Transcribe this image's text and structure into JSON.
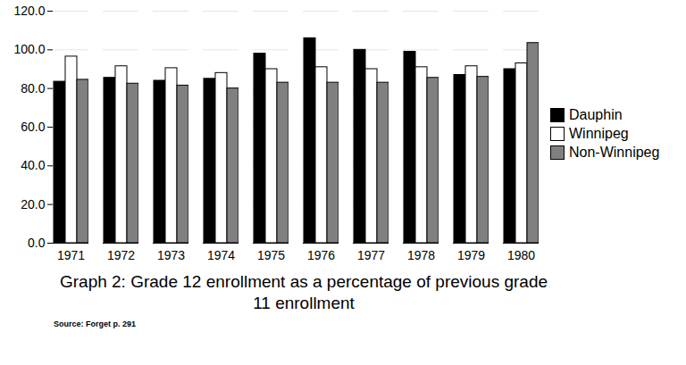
{
  "chart_data": {
    "type": "bar",
    "title": "Graph 2: Grade 12 enrollment as a percentage of previous grade 11 enrollment",
    "source": "Source: Forget p. 291",
    "categories": [
      "1971",
      "1972",
      "1973",
      "1974",
      "1975",
      "1976",
      "1977",
      "1978",
      "1979",
      "1980"
    ],
    "series": [
      {
        "name": "Dauphin",
        "color": "#000000",
        "values": [
          83.5,
          85.5,
          84,
          85,
          98,
          106,
          100,
          99,
          87,
          90
        ]
      },
      {
        "name": "Winnipeg",
        "color": "#ffffff",
        "values": [
          96.5,
          91.5,
          90.5,
          88,
          90,
          91,
          90,
          91,
          91.5,
          93
        ]
      },
      {
        "name": "Non-Winnipeg",
        "color": "#808080",
        "values": [
          84.5,
          82.5,
          81.5,
          80,
          83,
          83,
          83,
          85.5,
          86,
          103.5
        ]
      }
    ],
    "ylim": [
      0,
      120
    ],
    "yticks": [
      {
        "value": 0,
        "label": "0.0"
      },
      {
        "value": 20,
        "label": "20.0"
      },
      {
        "value": 40,
        "label": "40.0"
      },
      {
        "value": 60,
        "label": "60.0"
      },
      {
        "value": 80,
        "label": "80.0"
      },
      {
        "value": 100,
        "label": "100.0"
      },
      {
        "value": 120,
        "label": "120.0"
      }
    ],
    "grid": true,
    "legend": "right"
  }
}
